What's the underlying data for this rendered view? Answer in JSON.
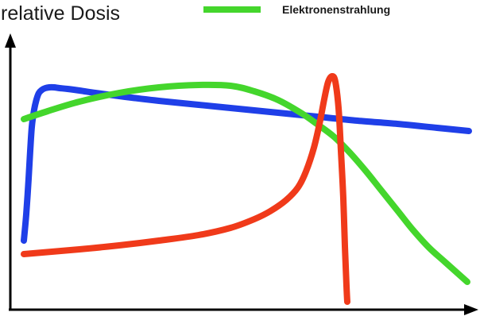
{
  "chart_data": {
    "type": "line",
    "title": "",
    "ylabel": "relative Dosis",
    "xlabel": "",
    "grid": false,
    "legend_position": "top-center",
    "legend": [
      {
        "label": "Elektronenstrahlung",
        "color": "#44d62c"
      }
    ],
    "series": [
      {
        "color": "#1f3fe8",
        "x": [
          30,
          33,
          36,
          38,
          40,
          43,
          46,
          49,
          53,
          57,
          62,
          68,
          75,
          85,
          100,
          120,
          150,
          200,
          250,
          300,
          350,
          400,
          450,
          500,
          550,
          590
        ],
        "y": [
          303,
          270,
          225,
          190,
          160,
          138,
          125,
          117,
          113,
          111,
          110,
          110,
          111,
          112,
          114,
          117,
          121,
          127,
          132,
          137,
          142,
          147,
          152,
          156,
          161,
          165
        ]
      },
      {
        "color": "#44d62c",
        "x": [
          30,
          60,
          100,
          150,
          200,
          250,
          290,
          320,
          350,
          380,
          400,
          420,
          440,
          460,
          480,
          500,
          520,
          540,
          560,
          588
        ],
        "y": [
          150,
          140,
          128,
          117,
          110,
          107,
          108,
          115,
          126,
          143,
          157,
          172,
          192,
          215,
          240,
          265,
          290,
          312,
          330,
          355
        ]
      },
      {
        "color": "#f03a1a",
        "x": [
          30,
          100,
          150,
          200,
          250,
          290,
          320,
          340,
          360,
          375,
          385,
          395,
          402,
          408,
          413,
          418,
          422,
          426,
          429,
          432,
          434,
          436,
          437
        ],
        "y": [
          320,
          314,
          309,
          303,
          296,
          287,
          276,
          266,
          252,
          236,
          216,
          186,
          156,
          125,
          103,
          96,
          103,
          136,
          190,
          250,
          310,
          360,
          380
        ]
      }
    ]
  }
}
